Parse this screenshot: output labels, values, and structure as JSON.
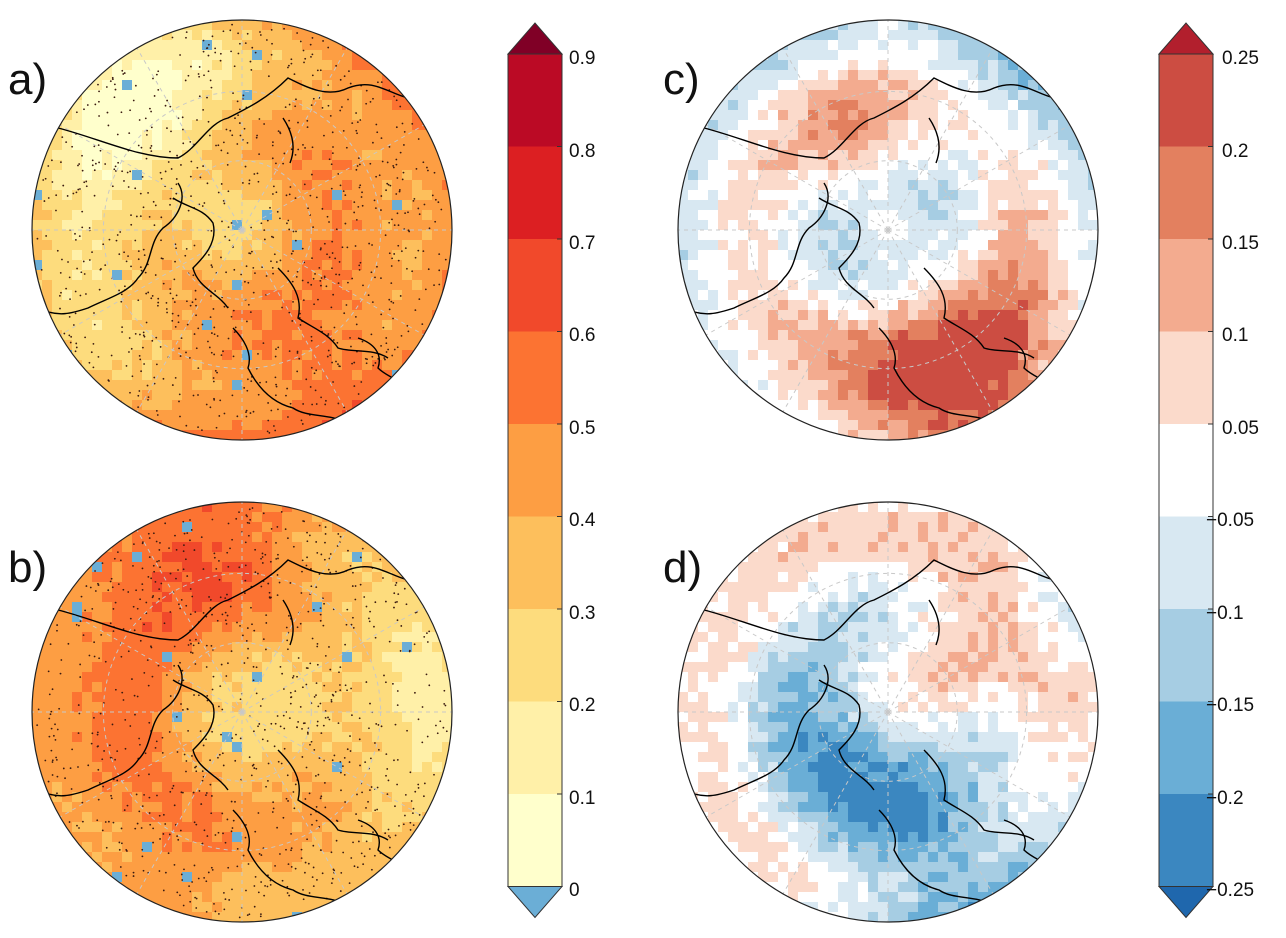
{
  "panels": [
    {
      "label": "a)",
      "colorbar": "sequential"
    },
    {
      "label": "b)",
      "colorbar": "sequential"
    },
    {
      "label": "c)",
      "colorbar": "diverging"
    },
    {
      "label": "d)",
      "colorbar": "diverging"
    }
  ],
  "colorbars": {
    "sequential": {
      "ticks": [
        "0",
        "0.1",
        "0.2",
        "0.3",
        "0.4",
        "0.5",
        "0.6",
        "0.7",
        "0.8",
        "0.9"
      ],
      "colors": [
        "#ffffcc",
        "#fff0a8",
        "#fddc7d",
        "#fdbf5c",
        "#fd9e43",
        "#fc7332",
        "#f1492b",
        "#dc1f22",
        "#bb0a25"
      ],
      "under_color": "#6baed6",
      "over_color": "#800026"
    },
    "diverging": {
      "ticks": [
        "−0.25",
        "−0.2",
        "−0.15",
        "−0.1",
        "−0.05",
        "0.05",
        "0.1",
        "0.15",
        "0.2",
        "0.25"
      ],
      "colors": [
        "#3b87c0",
        "#6aaed6",
        "#a6cde3",
        "#d8e8f2",
        "#ffffff",
        "#fbdacb",
        "#f3ab8f",
        "#e3805f",
        "#cc4d42"
      ],
      "under_color": "#1f67ad",
      "over_color": "#b21f2d"
    }
  }
}
